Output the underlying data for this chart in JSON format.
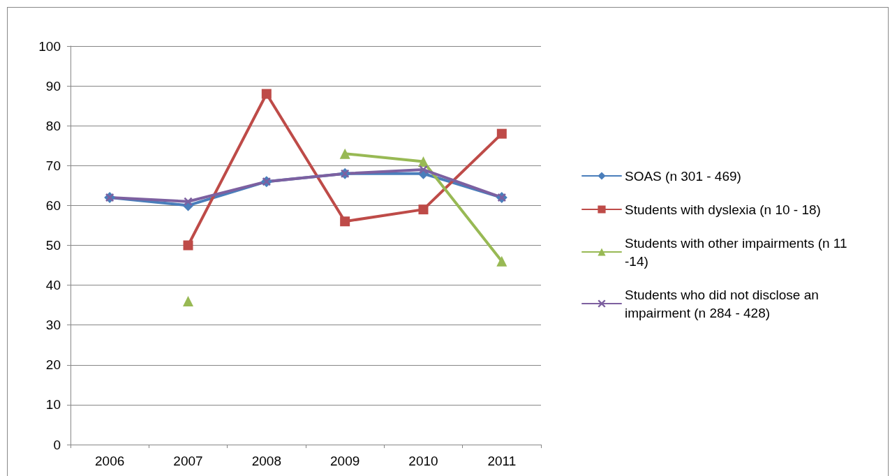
{
  "chart_data": {
    "type": "line",
    "categories": [
      "2006",
      "2007",
      "2008",
      "2009",
      "2010",
      "2011"
    ],
    "ylim": [
      0,
      100
    ],
    "yticks": [
      0,
      10,
      20,
      30,
      40,
      50,
      60,
      70,
      80,
      90,
      100
    ],
    "grid": "y",
    "legend": "right",
    "series": [
      {
        "name": "SOAS (n 301 - 469)",
        "color": "#4a7ebb",
        "marker": "diamond",
        "values": [
          62,
          60,
          66,
          68,
          68,
          62
        ]
      },
      {
        "name": "Students with dyslexia (n 10 - 18)",
        "color": "#be4b48",
        "marker": "square",
        "values": [
          null,
          50,
          88,
          56,
          59,
          78
        ]
      },
      {
        "name": "Students with other impairments (n 11 -14)",
        "color": "#98b954",
        "marker": "triangle",
        "values": [
          null,
          36,
          null,
          73,
          71,
          46
        ]
      },
      {
        "name": "Students who did not disclose an impairment (n 284 - 428)",
        "color": "#7d60a0",
        "marker": "cross",
        "values": [
          62,
          61,
          66,
          68,
          69,
          62
        ]
      }
    ]
  }
}
